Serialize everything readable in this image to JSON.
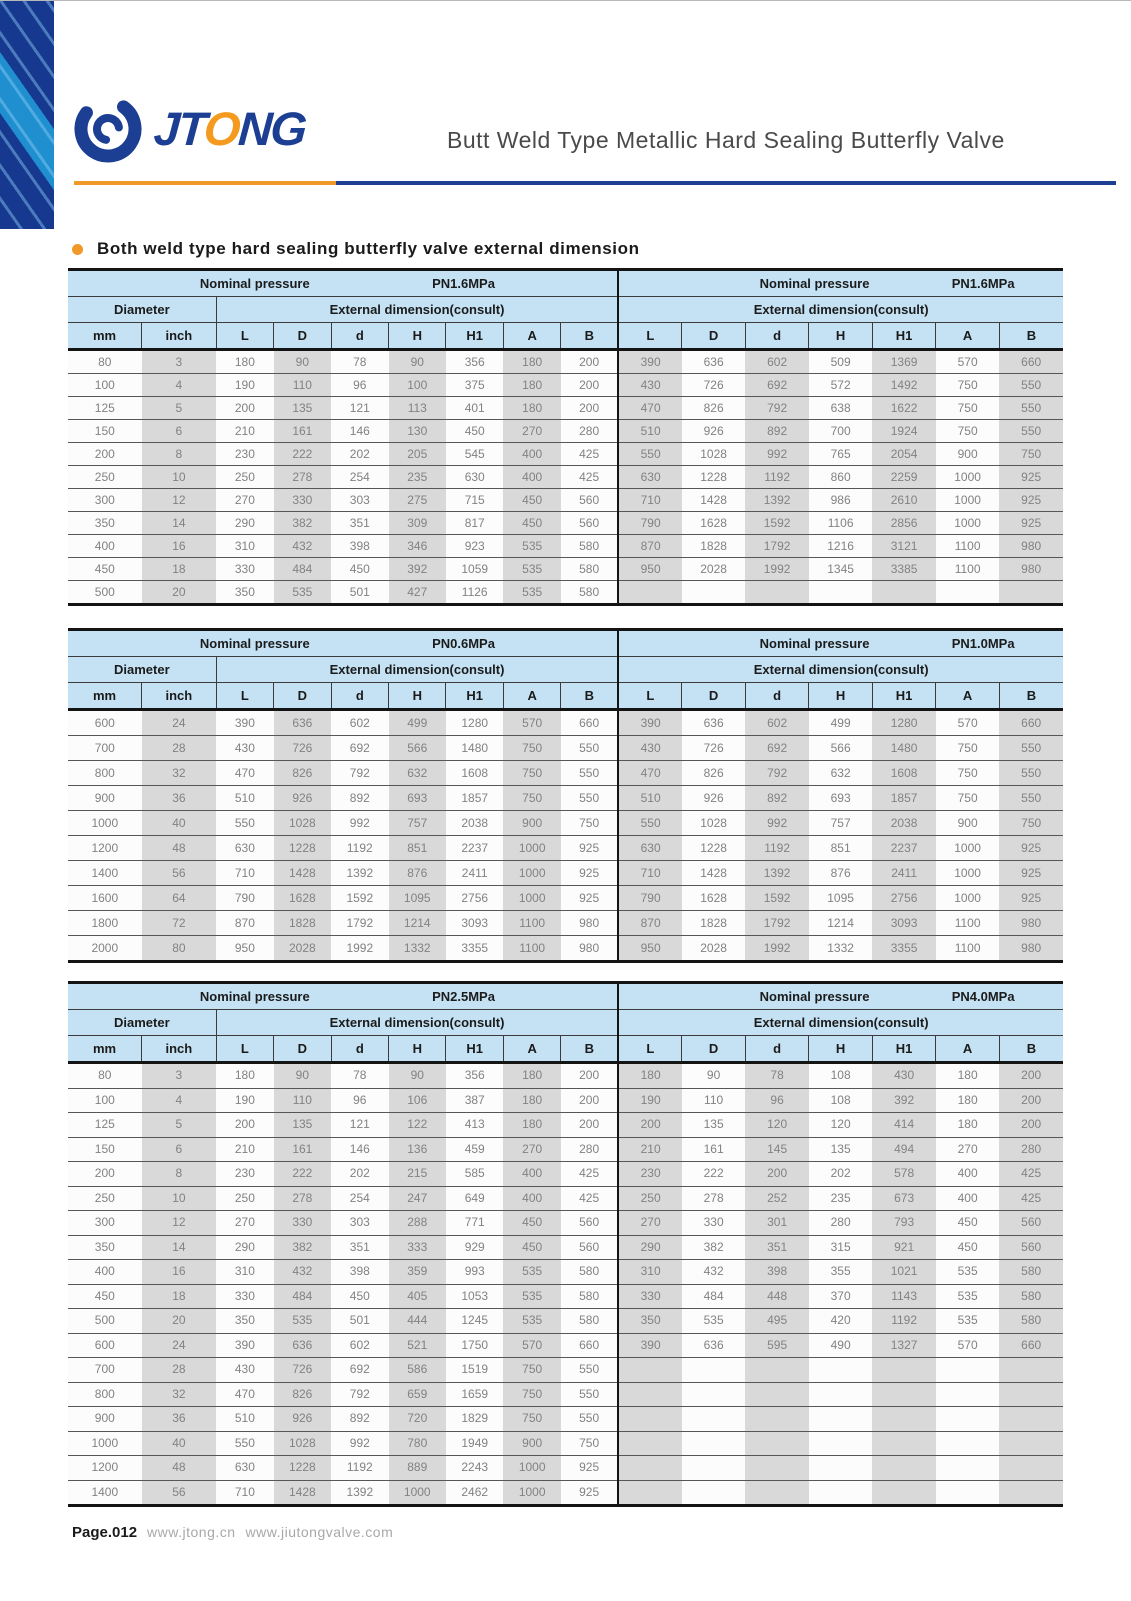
{
  "brand_colors": {
    "navy": "#1c3f94",
    "orange": "#f09929",
    "table_header_blue": "#c4e2f3",
    "stripe_gray": "#d9d9d9"
  },
  "header": {
    "logo": {
      "part1": "JT",
      "part2": "O",
      "part3": "NG"
    },
    "title": "Butt Weld Type Metallic Hard Sealing Butterfly Valve"
  },
  "section_title": "Both weld type hard sealing butterfly valve external dimension",
  "tables": [
    {
      "left": {
        "pressure_label": "Nominal pressure",
        "pressure_value": "PN1.6MPa",
        "diameter_label": "Diameter",
        "dimension_label": "External dimension(consult)",
        "columns": [
          "mm",
          "inch",
          "L",
          "D",
          "d",
          "H",
          "H1",
          "A",
          "B"
        ],
        "rows": [
          [
            80,
            3,
            180,
            90,
            78,
            90,
            356,
            180,
            200
          ],
          [
            100,
            4,
            190,
            110,
            96,
            100,
            375,
            180,
            200
          ],
          [
            125,
            5,
            200,
            135,
            121,
            113,
            401,
            180,
            200
          ],
          [
            150,
            6,
            210,
            161,
            146,
            130,
            450,
            270,
            280
          ],
          [
            200,
            8,
            230,
            222,
            202,
            205,
            545,
            400,
            425
          ],
          [
            250,
            10,
            250,
            278,
            254,
            235,
            630,
            400,
            425
          ],
          [
            300,
            12,
            270,
            330,
            303,
            275,
            715,
            450,
            560
          ],
          [
            350,
            14,
            290,
            382,
            351,
            309,
            817,
            450,
            560
          ],
          [
            400,
            16,
            310,
            432,
            398,
            346,
            923,
            535,
            580
          ],
          [
            450,
            18,
            330,
            484,
            450,
            392,
            1059,
            535,
            580
          ],
          [
            500,
            20,
            350,
            535,
            501,
            427,
            1126,
            535,
            580
          ]
        ]
      },
      "right": {
        "pressure_label": "Nominal pressure",
        "pressure_value": "PN1.6MPa",
        "dimension_label": "External dimension(consult)",
        "columns": [
          "L",
          "D",
          "d",
          "H",
          "H1",
          "A",
          "B"
        ],
        "rows": [
          [
            390,
            636,
            602,
            509,
            1369,
            570,
            660
          ],
          [
            430,
            726,
            692,
            572,
            1492,
            750,
            550
          ],
          [
            470,
            826,
            792,
            638,
            1622,
            750,
            550
          ],
          [
            510,
            926,
            892,
            700,
            1924,
            750,
            550
          ],
          [
            550,
            1028,
            992,
            765,
            2054,
            900,
            750
          ],
          [
            630,
            1228,
            1192,
            860,
            2259,
            1000,
            925
          ],
          [
            710,
            1428,
            1392,
            986,
            2610,
            1000,
            925
          ],
          [
            790,
            1628,
            1592,
            1106,
            2856,
            1000,
            925
          ],
          [
            870,
            1828,
            1792,
            1216,
            3121,
            1100,
            980
          ],
          [
            950,
            2028,
            1992,
            1345,
            3385,
            1100,
            980
          ]
        ]
      }
    },
    {
      "left": {
        "pressure_label": "Nominal pressure",
        "pressure_value": "PN0.6MPa",
        "diameter_label": "Diameter",
        "dimension_label": "External dimension(consult)",
        "columns": [
          "mm",
          "inch",
          "L",
          "D",
          "d",
          "H",
          "H1",
          "A",
          "B"
        ],
        "rows": [
          [
            600,
            24,
            390,
            636,
            602,
            499,
            1280,
            570,
            660
          ],
          [
            700,
            28,
            430,
            726,
            692,
            566,
            1480,
            750,
            550
          ],
          [
            800,
            32,
            470,
            826,
            792,
            632,
            1608,
            750,
            550
          ],
          [
            900,
            36,
            510,
            926,
            892,
            693,
            1857,
            750,
            550
          ],
          [
            1000,
            40,
            550,
            1028,
            992,
            757,
            2038,
            900,
            750
          ],
          [
            1200,
            48,
            630,
            1228,
            1192,
            851,
            2237,
            1000,
            925
          ],
          [
            1400,
            56,
            710,
            1428,
            1392,
            876,
            2411,
            1000,
            925
          ],
          [
            1600,
            64,
            790,
            1628,
            1592,
            1095,
            2756,
            1000,
            925
          ],
          [
            1800,
            72,
            870,
            1828,
            1792,
            1214,
            3093,
            1100,
            980
          ],
          [
            2000,
            80,
            950,
            2028,
            1992,
            1332,
            3355,
            1100,
            980
          ]
        ]
      },
      "right": {
        "pressure_label": "Nominal pressure",
        "pressure_value": "PN1.0MPa",
        "dimension_label": "External dimension(consult)",
        "columns": [
          "L",
          "D",
          "d",
          "H",
          "H1",
          "A",
          "B"
        ],
        "rows": [
          [
            390,
            636,
            602,
            499,
            1280,
            570,
            660
          ],
          [
            430,
            726,
            692,
            566,
            1480,
            750,
            550
          ],
          [
            470,
            826,
            792,
            632,
            1608,
            750,
            550
          ],
          [
            510,
            926,
            892,
            693,
            1857,
            750,
            550
          ],
          [
            550,
            1028,
            992,
            757,
            2038,
            900,
            750
          ],
          [
            630,
            1228,
            1192,
            851,
            2237,
            1000,
            925
          ],
          [
            710,
            1428,
            1392,
            876,
            2411,
            1000,
            925
          ],
          [
            790,
            1628,
            1592,
            1095,
            2756,
            1000,
            925
          ],
          [
            870,
            1828,
            1792,
            1214,
            3093,
            1100,
            980
          ],
          [
            950,
            2028,
            1992,
            1332,
            3355,
            1100,
            980
          ]
        ]
      }
    },
    {
      "left": {
        "pressure_label": "Nominal pressure",
        "pressure_value": "PN2.5MPa",
        "diameter_label": "Diameter",
        "dimension_label": "External dimension(consult)",
        "columns": [
          "mm",
          "inch",
          "L",
          "D",
          "d",
          "H",
          "H1",
          "A",
          "B"
        ],
        "rows": [
          [
            80,
            3,
            180,
            90,
            78,
            90,
            356,
            180,
            200
          ],
          [
            100,
            4,
            190,
            110,
            96,
            106,
            387,
            180,
            200
          ],
          [
            125,
            5,
            200,
            135,
            121,
            122,
            413,
            180,
            200
          ],
          [
            150,
            6,
            210,
            161,
            146,
            136,
            459,
            270,
            280
          ],
          [
            200,
            8,
            230,
            222,
            202,
            215,
            585,
            400,
            425
          ],
          [
            250,
            10,
            250,
            278,
            254,
            247,
            649,
            400,
            425
          ],
          [
            300,
            12,
            270,
            330,
            303,
            288,
            771,
            450,
            560
          ],
          [
            350,
            14,
            290,
            382,
            351,
            333,
            929,
            450,
            560
          ],
          [
            400,
            16,
            310,
            432,
            398,
            359,
            993,
            535,
            580
          ],
          [
            450,
            18,
            330,
            484,
            450,
            405,
            1053,
            535,
            580
          ],
          [
            500,
            20,
            350,
            535,
            501,
            444,
            1245,
            535,
            580
          ],
          [
            600,
            24,
            390,
            636,
            602,
            521,
            1750,
            570,
            660
          ],
          [
            700,
            28,
            430,
            726,
            692,
            586,
            1519,
            750,
            550
          ],
          [
            800,
            32,
            470,
            826,
            792,
            659,
            1659,
            750,
            550
          ],
          [
            900,
            36,
            510,
            926,
            892,
            720,
            1829,
            750,
            550
          ],
          [
            1000,
            40,
            550,
            1028,
            992,
            780,
            1949,
            900,
            750
          ],
          [
            1200,
            48,
            630,
            1228,
            1192,
            889,
            2243,
            1000,
            925
          ],
          [
            1400,
            56,
            710,
            1428,
            1392,
            1000,
            2462,
            1000,
            925
          ]
        ]
      },
      "right": {
        "pressure_label": "Nominal pressure",
        "pressure_value": "PN4.0MPa",
        "dimension_label": "External dimension(consult)",
        "columns": [
          "L",
          "D",
          "d",
          "H",
          "H1",
          "A",
          "B"
        ],
        "rows": [
          [
            180,
            90,
            78,
            108,
            430,
            180,
            200
          ],
          [
            190,
            110,
            96,
            108,
            392,
            180,
            200
          ],
          [
            200,
            135,
            120,
            120,
            414,
            180,
            200
          ],
          [
            210,
            161,
            145,
            135,
            494,
            270,
            280
          ],
          [
            230,
            222,
            200,
            202,
            578,
            400,
            425
          ],
          [
            250,
            278,
            252,
            235,
            673,
            400,
            425
          ],
          [
            270,
            330,
            301,
            280,
            793,
            450,
            560
          ],
          [
            290,
            382,
            351,
            315,
            921,
            450,
            560
          ],
          [
            310,
            432,
            398,
            355,
            1021,
            535,
            580
          ],
          [
            330,
            484,
            448,
            370,
            1143,
            535,
            580
          ],
          [
            350,
            535,
            495,
            420,
            1192,
            535,
            580
          ],
          [
            390,
            636,
            595,
            490,
            1327,
            570,
            660
          ]
        ]
      }
    }
  ],
  "footer": {
    "page_label": "Page.012",
    "url1": "www.jtong.cn",
    "url2": "www.jiutongvalve.com"
  }
}
